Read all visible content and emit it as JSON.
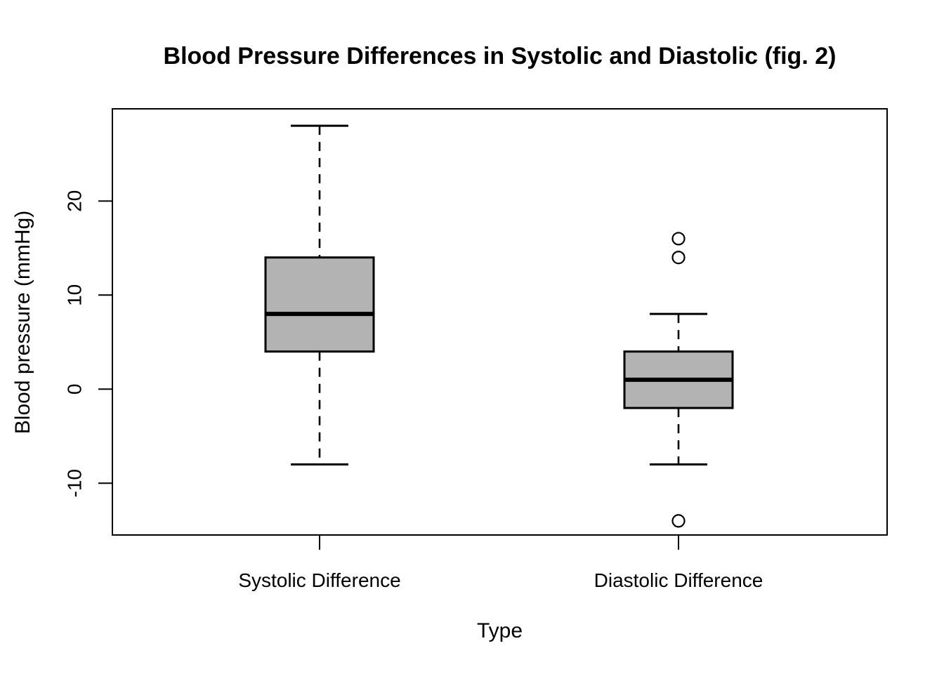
{
  "chart_data": {
    "type": "boxplot",
    "title": "Blood Pressure Differences in Systolic and Diastolic (fig. 2)",
    "xlabel": "Type",
    "ylabel": "Blood pressure (mmHg)",
    "ylim": [
      -15.5,
      29.8
    ],
    "yticks": [
      20,
      10,
      0,
      -10
    ],
    "grid": false,
    "legend": "none",
    "colors": {
      "box_fill": "#b3b3b3",
      "stroke": "#000000",
      "background": "#ffffff"
    },
    "groups": [
      {
        "label": "Systolic Difference",
        "lower_whisker": -8,
        "q1": 4,
        "median": 8,
        "q3": 14,
        "upper_whisker": 28,
        "outliers": []
      },
      {
        "label": "Diastolic Difference",
        "lower_whisker": -8,
        "q1": -2,
        "median": 1,
        "q3": 4,
        "upper_whisker": 8,
        "outliers": [
          16,
          14,
          -14
        ]
      }
    ]
  }
}
